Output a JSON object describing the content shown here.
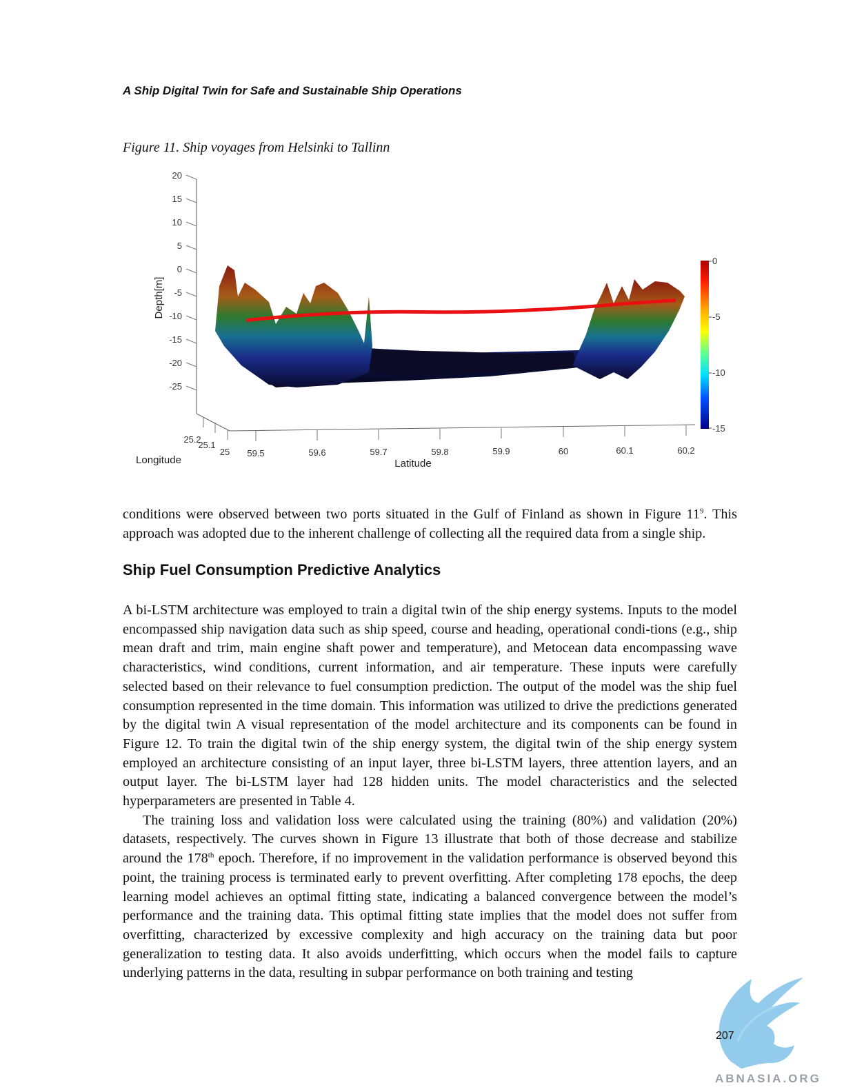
{
  "header": {
    "running_title": "A Ship Digital Twin for Safe and Sustainable Ship Operations"
  },
  "figure": {
    "caption": "Figure 11. Ship voyages from Helsinki to Tallinn",
    "z_axis_label": "Depth[m]",
    "z_ticks": [
      "20",
      "15",
      "10",
      "5",
      "0",
      "-5",
      "-10",
      "-15",
      "-20",
      "-25"
    ],
    "x_axis_label": "Latitude",
    "x_ticks": [
      "59.5",
      "59.6",
      "59.7",
      "59.8",
      "59.9",
      "60",
      "60.1",
      "60.2"
    ],
    "y_axis_label": "Longitude",
    "y_ticks": [
      "25.2",
      "25.1",
      "25"
    ],
    "colorbar_ticks": [
      "0",
      "-5",
      "-10",
      "-15"
    ]
  },
  "text": {
    "p1": "conditions were observed between two ports situated in the Gulf of Finland as shown in Figure 11",
    "p1_ref": "9",
    "p1_end": ". This approach was adopted due to the inherent challenge of collecting all the required data from a single ship.",
    "section_heading": "Ship Fuel Consumption Predictive Analytics",
    "p2": "A bi-LSTM architecture was employed to train a digital twin of the ship energy systems. Inputs to the model encompassed ship navigation data such as ship speed, course and heading, operational condi-tions (e.g., ship mean draft and trim, main engine shaft power and temperature), and Metocean data encompassing wave characteristics, wind conditions, current information, and air temperature. These inputs were carefully selected based on their relevance to fuel consumption prediction. The output of the model was the ship fuel consumption represented in the time domain. This information was utilized to drive the predictions generated by the digital twin A visual representation of the model architecture and its components can be found in Figure 12. To train the digital twin of the ship energy system, the digital twin of the ship energy system employed an architecture consisting of an input layer, three bi-LSTM layers, three attention layers, and an output layer. The bi-LSTM layer had 128 hidden units. The model characteristics and the selected hyperparameters are presented in Table 4.",
    "p3_start": "The training loss and validation loss were calculated using the training (80%) and validation (20%) datasets, respectively. The curves shown in Figure 13 illustrate that both of those decrease and stabilize around the 178",
    "p3_sup": "th",
    "p3_end": " epoch. Therefore, if no improvement in the validation performance is observed beyond this point, the training process is terminated early to prevent overfitting. After completing 178 epochs, the deep learning model achieves an optimal fitting state, indicating a balanced convergence between the model’s performance and the training data. This optimal fitting state implies that the model does not suffer from overfitting, characterized by excessive complexity and high accuracy on the training data but poor generalization to testing data. It also avoids underfitting, which occurs when the model fails to capture underlying patterns in the data, resulting in subpar performance on both training and testing"
  },
  "footer": {
    "page_number": "207",
    "watermark": "ABNASIA.ORG"
  }
}
